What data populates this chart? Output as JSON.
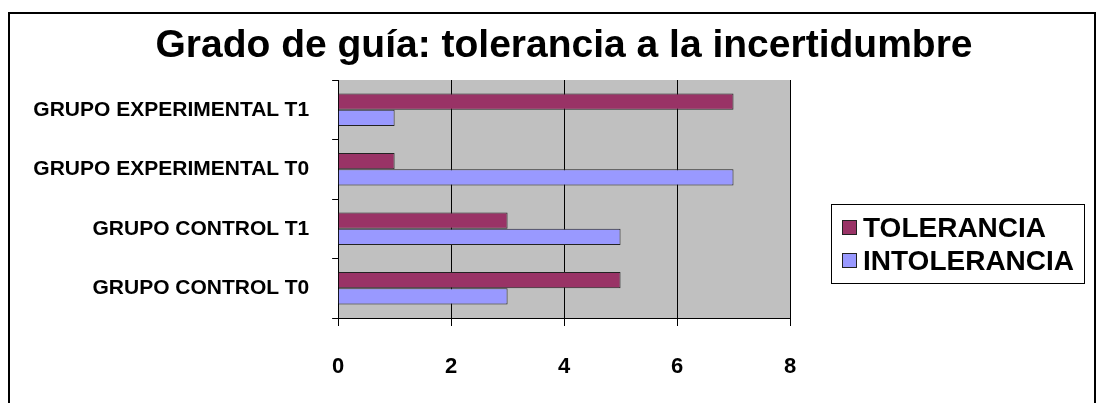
{
  "chart_data": {
    "type": "bar",
    "orientation": "horizontal",
    "title": "Grado de guía: tolerancia a la incertidumbre",
    "categories": [
      "GRUPO EXPERIMENTAL T1",
      "GRUPO EXPERIMENTAL T0",
      "GRUPO CONTROL T1",
      "GRUPO CONTROL T0"
    ],
    "series": [
      {
        "name": "TOLERANCIA",
        "color": "#993366",
        "values": [
          7,
          1,
          3,
          5
        ]
      },
      {
        "name": "INTOLERANCIA",
        "color": "#9999ff",
        "values": [
          1,
          7,
          5,
          3
        ]
      }
    ],
    "xlim": [
      0,
      8
    ],
    "xticks": [
      0,
      2,
      4,
      6,
      8
    ],
    "grid": "x",
    "legend": "right"
  }
}
